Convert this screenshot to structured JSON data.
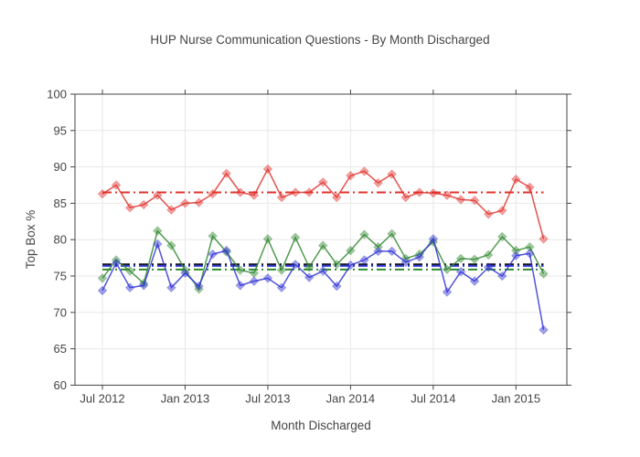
{
  "page": {
    "background": "#ffffff"
  },
  "chart_data": {
    "type": "line",
    "title": "HUP Nurse Communication Questions - By Month Discharged",
    "xlabel": "Month Discharged",
    "ylabel": "Top Box %",
    "ylim": [
      60,
      100
    ],
    "yticks": [
      60,
      65,
      70,
      75,
      80,
      85,
      90,
      95,
      100
    ],
    "xtick_labels": [
      "Jul 2012",
      "Jan 2013",
      "Jul 2013",
      "Jan 2014",
      "Jul 2014",
      "Jan 2015"
    ],
    "xtick_month_indices": [
      0,
      6,
      12,
      18,
      24,
      30
    ],
    "x_categories": [
      "Jul 2012",
      "Aug 2012",
      "Sep 2012",
      "Oct 2012",
      "Nov 2012",
      "Dec 2012",
      "Jan 2013",
      "Feb 2013",
      "Mar 2013",
      "Apr 2013",
      "May 2013",
      "Jun 2013",
      "Jul 2013",
      "Aug 2013",
      "Sep 2013",
      "Oct 2013",
      "Nov 2013",
      "Dec 2013",
      "Jan 2014",
      "Feb 2014",
      "Mar 2014",
      "Apr 2014",
      "May 2014",
      "Jun 2014",
      "Jul 2014",
      "Aug 2014",
      "Sep 2014",
      "Oct 2014",
      "Nov 2014",
      "Dec 2014",
      "Jan 2015",
      "Feb 2015",
      "Mar 2015"
    ],
    "grid": true,
    "legend_position": "none",
    "marker_shape": "diamond",
    "series": [
      {
        "name": "green-series",
        "color": "#338a33",
        "values": [
          74.7,
          77.2,
          75.7,
          74.0,
          81.2,
          79.2,
          75.8,
          73.2,
          80.5,
          78.3,
          75.8,
          75.4,
          80.1,
          75.8,
          80.3,
          76.2,
          79.2,
          76.6,
          78.5,
          80.7,
          79.0,
          80.8,
          77.4,
          78.0,
          79.7,
          75.9,
          77.4,
          77.3,
          77.9,
          80.4,
          78.5,
          79.0,
          75.3
        ]
      },
      {
        "name": "blue-series",
        "color": "#3034d3",
        "values": [
          73.0,
          76.8,
          73.4,
          73.7,
          79.4,
          73.4,
          75.4,
          73.6,
          78.0,
          78.5,
          73.7,
          74.3,
          74.7,
          73.4,
          76.6,
          74.8,
          75.7,
          73.6,
          76.5,
          77.2,
          78.4,
          78.4,
          76.9,
          77.6,
          80.1,
          72.8,
          75.6,
          74.3,
          76.2,
          75.0,
          77.8,
          78.1,
          67.6
        ]
      },
      {
        "name": "red-series",
        "color": "#e0332e",
        "values": [
          86.3,
          87.5,
          84.4,
          84.8,
          86.1,
          84.1,
          85.0,
          85.1,
          86.3,
          89.1,
          86.5,
          86.1,
          89.7,
          85.8,
          86.5,
          86.5,
          87.9,
          85.8,
          88.8,
          89.4,
          87.8,
          89.0,
          85.8,
          86.5,
          86.4,
          86.1,
          85.5,
          85.4,
          83.5,
          84.0,
          88.3,
          87.2,
          80.1
        ]
      }
    ],
    "reference_lines": [
      {
        "name": "red-average-line",
        "value": 86.5,
        "color": "#e0332e",
        "style": "dashdot"
      },
      {
        "name": "black-average-line",
        "value": 76.6,
        "color": "#111111",
        "style": "dashdot"
      },
      {
        "name": "blue-average-line",
        "value": 76.4,
        "color": "#3034d3",
        "style": "dashdot"
      },
      {
        "name": "green-average-line",
        "value": 75.9,
        "color": "#2e8b2e",
        "style": "dashdot"
      }
    ],
    "axis_color": "#444444",
    "grid_color": "#e8e8e8"
  }
}
